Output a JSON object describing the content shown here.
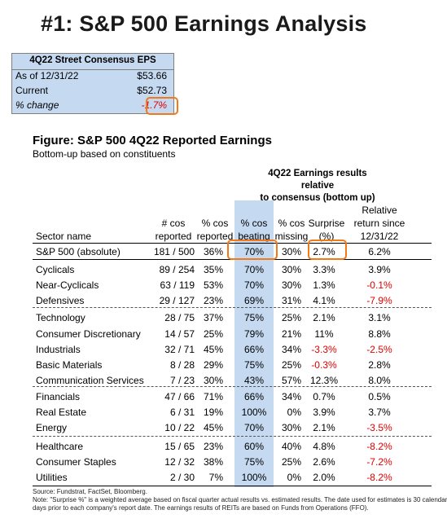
{
  "title": "#1: S&P 500 Earnings Analysis",
  "consensus": {
    "header": "4Q22 Street Consensus EPS",
    "rows": [
      {
        "label": "As of  12/31/22",
        "value": "$53.66"
      },
      {
        "label": "Current",
        "value": "$52.73"
      },
      {
        "label": "% change",
        "value": "-1.7%"
      }
    ]
  },
  "figure": {
    "title": "Figure: S&P 500 4Q22 Reported Earnings",
    "subtitle": "Bottom-up based on constituents",
    "group_header_line1": "4Q22 Earnings results relative",
    "group_header_line2": "to consensus (bottom up)",
    "headers": {
      "sector": "Sector name",
      "cos_reported_1": "# cos",
      "cos_reported_2": "reported",
      "pct_reported_1": "% cos",
      "pct_reported_2": "reported",
      "beating_1": "% cos",
      "beating_2": "beating",
      "missing_1": "% cos",
      "missing_2": "missing",
      "surprise_1": "Surprise",
      "surprise_2": "(%)",
      "relret_1": "Relative",
      "relret_2": "return since",
      "relret_3": "12/31/22"
    },
    "rows": [
      {
        "name": "S&P 500 (absolute)",
        "cos": "181 / 500",
        "reported": "36%",
        "beating": "70%",
        "missing": "30%",
        "surprise": "2.7%",
        "relret": "6.2%"
      },
      {
        "name": "Cyclicals",
        "cos": "89 / 254",
        "reported": "35%",
        "beating": "70%",
        "missing": "30%",
        "surprise": "3.3%",
        "relret": "3.9%"
      },
      {
        "name": "Near-Cyclicals",
        "cos": "63 / 119",
        "reported": "53%",
        "beating": "70%",
        "missing": "30%",
        "surprise": "1.3%",
        "relret": "-0.1%"
      },
      {
        "name": "Defensives",
        "cos": "29 / 127",
        "reported": "23%",
        "beating": "69%",
        "missing": "31%",
        "surprise": "4.1%",
        "relret": "-7.9%"
      },
      {
        "name": "Technology",
        "cos": "28 / 75",
        "reported": "37%",
        "beating": "75%",
        "missing": "25%",
        "surprise": "2.1%",
        "relret": "3.1%"
      },
      {
        "name": "Consumer Discretionary",
        "cos": "14 / 57",
        "reported": "25%",
        "beating": "79%",
        "missing": "21%",
        "surprise": "11%",
        "relret": "8.8%"
      },
      {
        "name": "Industrials",
        "cos": "32 / 71",
        "reported": "45%",
        "beating": "66%",
        "missing": "34%",
        "surprise": "-3.3%",
        "relret": "-2.5%"
      },
      {
        "name": "Basic Materials",
        "cos": "8 / 28",
        "reported": "29%",
        "beating": "75%",
        "missing": "25%",
        "surprise": "-0.3%",
        "relret": "2.8%"
      },
      {
        "name": "Communication Services",
        "cos": "7 / 23",
        "reported": "30%",
        "beating": "43%",
        "missing": "57%",
        "surprise": "12.3%",
        "relret": "8.0%"
      },
      {
        "name": "Financials",
        "cos": "47 / 66",
        "reported": "71%",
        "beating": "66%",
        "missing": "34%",
        "surprise": "0.7%",
        "relret": "0.5%"
      },
      {
        "name": "Real Estate",
        "cos": "6 / 31",
        "reported": "19%",
        "beating": "100%",
        "missing": "0%",
        "surprise": "3.9%",
        "relret": "3.7%"
      },
      {
        "name": "Energy",
        "cos": "10 / 22",
        "reported": "45%",
        "beating": "70%",
        "missing": "30%",
        "surprise": "2.1%",
        "relret": "-3.5%"
      },
      {
        "name": "Healthcare",
        "cos": "15 / 65",
        "reported": "23%",
        "beating": "60%",
        "missing": "40%",
        "surprise": "4.8%",
        "relret": "-8.2%"
      },
      {
        "name": "Consumer Staples",
        "cos": "12 / 32",
        "reported": "38%",
        "beating": "75%",
        "missing": "25%",
        "surprise": "2.6%",
        "relret": "-7.2%"
      },
      {
        "name": "Utilities",
        "cos": "2 / 30",
        "reported": "7%",
        "beating": "100%",
        "missing": "0%",
        "surprise": "2.0%",
        "relret": "-8.2%"
      }
    ],
    "footnote_source": "Source: Fundstrat, FactSet, Bloomberg.",
    "footnote_note_1": "Note: \"Surprise %\" is a weighted average based on fiscal quarter actual results vs. estimated results.  The date used for estimates is 30 calendar",
    "footnote_note_2": "days prior to each company's report date. The earnings results of REITs are based on Funds from Operations (FFO)."
  },
  "colors": {
    "highlight_band": "#c5d9f1",
    "highlight_box": "#f07a1a",
    "negative": "#e00000"
  }
}
